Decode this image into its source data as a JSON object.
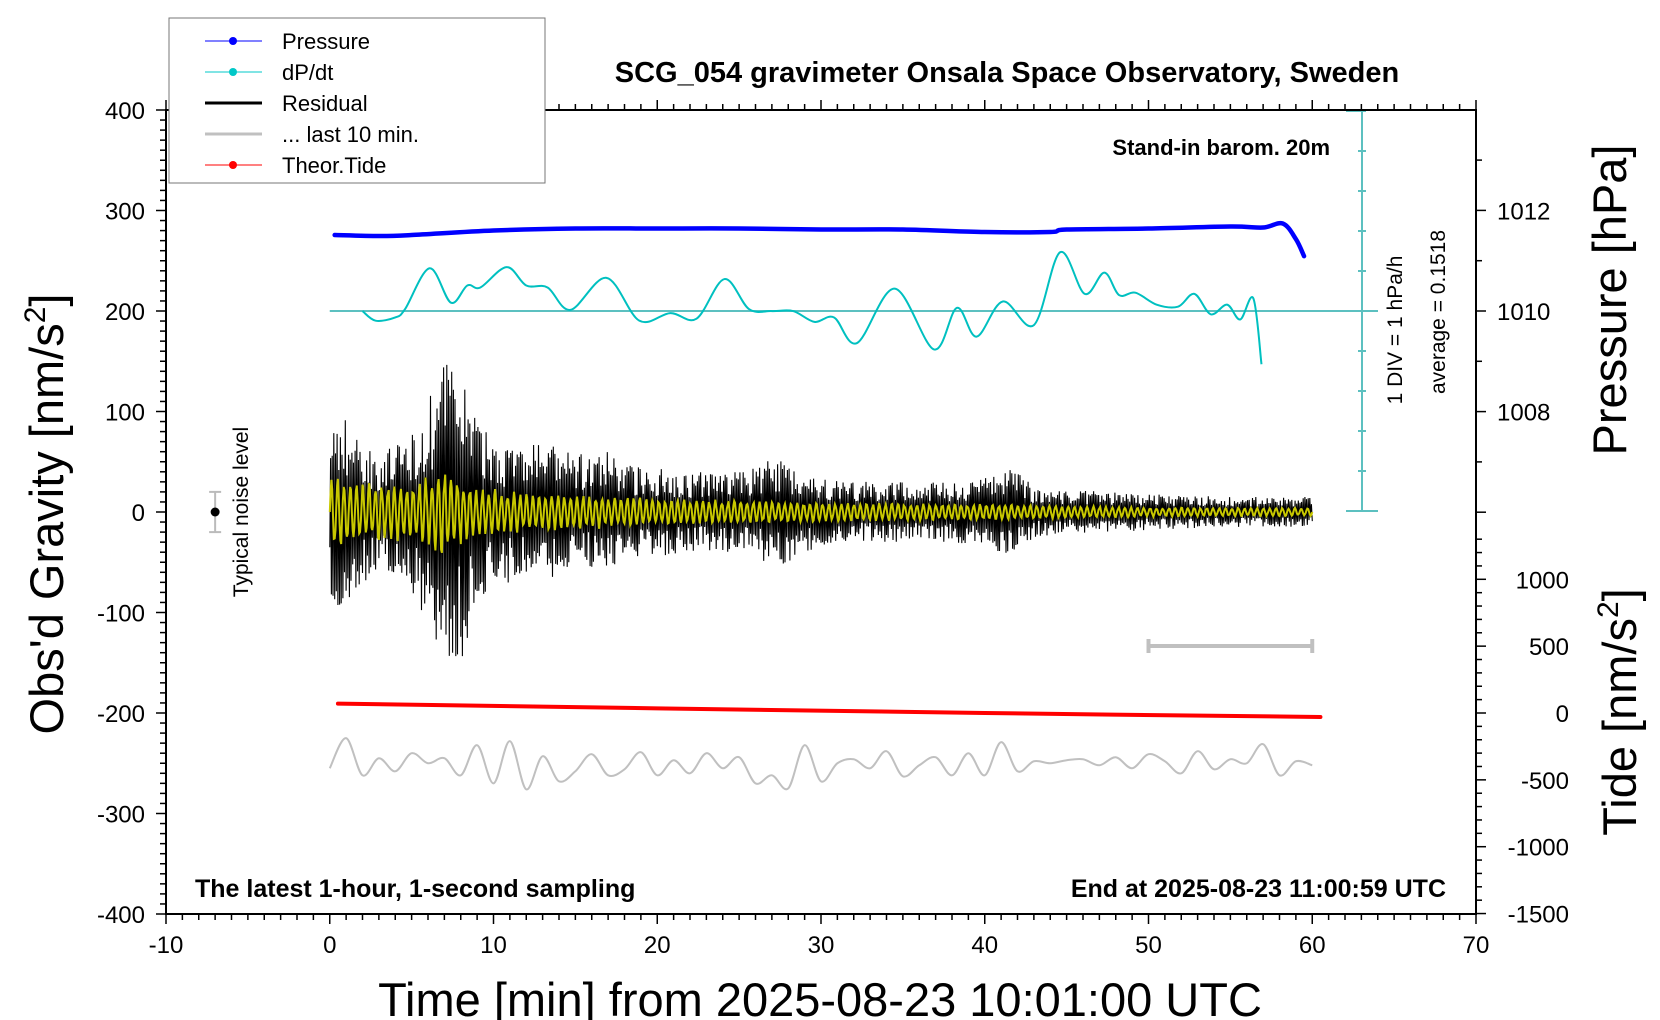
{
  "chart_data": {
    "type": "line",
    "title": "SCG_054 gravimeter Onsala Space Observatory, Sweden",
    "subtitle_top_right": "Stand-in barom. 20m",
    "note_bottom_left": "The latest 1-hour, 1-second sampling",
    "note_bottom_right": "End at 2025-08-23 11:00:59 UTC",
    "xlabel": "Time [min] from 2025-08-23 10:01:00 UTC",
    "xlim": [
      -10,
      70
    ],
    "xticks": [
      -10,
      0,
      10,
      20,
      30,
      40,
      50,
      60,
      70
    ],
    "ylabel_left": {
      "text": "Obs'd Gravity [nm/s",
      "sup": "2",
      "tail": "]"
    },
    "ylim_left": [
      -400,
      400
    ],
    "yticks_left": [
      400,
      300,
      200,
      100,
      0,
      -100,
      -200,
      -300,
      -400
    ],
    "ylabel_pressure": "Pressure [hPa]",
    "yticks_pressure": [
      1012,
      1010,
      1008
    ],
    "ylabel_tide": {
      "text": "Tide [nm/s",
      "sup": "2",
      "tail": "]"
    },
    "yticks_tide": [
      1000,
      500,
      0,
      -500,
      -1000,
      -1500
    ],
    "dpdt_scale_label": "1 DIV = 1 hPa/h",
    "dpdt_average_label": "average = 0.1518",
    "dpdt_average": 0.1518,
    "noise_label": "Typical noise level",
    "noise_level": 20,
    "last10_window": [
      50,
      60
    ],
    "grid": false,
    "legend_placement": "top-left",
    "legend": [
      {
        "name": "Pressure",
        "color": "#0000ff",
        "marker": true
      },
      {
        "name": "dP/dt",
        "color": "#00c8c8",
        "marker": true
      },
      {
        "name": "Residual",
        "color": "#000000",
        "marker": false
      },
      {
        "name": "... last 10 min.",
        "color": "#c0c0c0",
        "marker": false
      },
      {
        "name": "Theor.Tide",
        "color": "#ff0000",
        "marker": true
      }
    ],
    "colors": {
      "pressure": "#0000ff",
      "dpdt": "#00c0c0",
      "dpdt_axis": "#5cc0c0",
      "residual": "#000000",
      "filtered": "#c8c800",
      "last10": "#c0c0c0",
      "tide": "#ff0000"
    },
    "series": {
      "pressure_hPa": {
        "x": [
          0.3,
          3,
          5,
          10,
          15,
          20,
          25,
          30,
          35,
          40,
          44,
          45,
          50,
          55,
          57,
          58.2,
          59,
          59.5
        ],
        "y": [
          1011.51,
          1011.49,
          1011.51,
          1011.6,
          1011.64,
          1011.64,
          1011.64,
          1011.62,
          1011.62,
          1011.57,
          1011.57,
          1011.62,
          1011.64,
          1011.68,
          1011.66,
          1011.74,
          1011.43,
          1011.09
        ]
      },
      "dpdt_hPa_per_h": {
        "x": [
          2.0,
          2.8,
          4.0,
          4.6,
          6.1,
          7.4,
          8.4,
          9.2,
          10.8,
          12.0,
          13.3,
          14.7,
          16.9,
          18.9,
          20.8,
          22.4,
          24.1,
          25.6,
          27.0,
          28.3,
          29.6,
          30.8,
          32.2,
          34.5,
          36.9,
          38.3,
          39.5,
          41.1,
          43.0,
          44.6,
          46.1,
          47.3,
          48.2,
          49.2,
          50.5,
          51.8,
          52.8,
          53.8,
          54.8,
          55.6,
          56.4,
          56.9
        ],
        "y": [
          0.15,
          -0.09,
          -0.01,
          0.2,
          1.22,
          0.36,
          0.79,
          0.74,
          1.25,
          0.79,
          0.74,
          0.18,
          0.98,
          -0.09,
          0.1,
          -0.04,
          0.95,
          0.2,
          0.15,
          0.15,
          -0.12,
          -0.01,
          -0.65,
          0.71,
          -0.81,
          0.23,
          -0.49,
          0.39,
          -0.2,
          1.62,
          0.58,
          1.11,
          0.55,
          0.61,
          0.31,
          0.26,
          0.58,
          0.07,
          0.31,
          -0.06,
          0.47,
          -1.18
        ]
      },
      "residual_envelope_nm_s2": {
        "x": [
          0,
          1,
          2,
          3,
          4,
          5,
          6,
          7,
          8,
          9,
          10,
          11,
          12,
          13,
          14,
          15,
          16,
          17,
          18,
          19,
          20,
          22,
          24,
          26,
          27,
          28,
          29,
          30,
          32,
          34,
          36,
          38,
          40,
          41,
          42,
          43,
          45,
          48,
          50,
          55,
          60
        ],
        "y": [
          100,
          95,
          70,
          60,
          65,
          80,
          110,
          150,
          155,
          90,
          75,
          70,
          65,
          75,
          60,
          60,
          55,
          60,
          50,
          45,
          45,
          40,
          40,
          45,
          55,
          50,
          40,
          35,
          30,
          30,
          30,
          30,
          35,
          45,
          40,
          25,
          22,
          20,
          18,
          15,
          15
        ]
      },
      "filtered_envelope_nm_s2": {
        "x": [
          0,
          2,
          5,
          7,
          9,
          12,
          15,
          20,
          30,
          40,
          50,
          60
        ],
        "y": [
          40,
          30,
          30,
          45,
          25,
          20,
          18,
          14,
          10,
          8,
          5,
          4
        ]
      },
      "last10_nm_s2": {
        "x": [
          0,
          1,
          2,
          3,
          4,
          5,
          6,
          7,
          8,
          9,
          10,
          11,
          12,
          13,
          14,
          15,
          16,
          17,
          18,
          19,
          20,
          21,
          22,
          23,
          24,
          25,
          26,
          27,
          28,
          29,
          30,
          31,
          32,
          33,
          34,
          35,
          36,
          37,
          38,
          39,
          40,
          41,
          42,
          43,
          44,
          45,
          46,
          47,
          48,
          49,
          50,
          51,
          52,
          53,
          54,
          55,
          56,
          57,
          58,
          59,
          60
        ],
        "y": [
          -255,
          -225,
          -262,
          -245,
          -258,
          -240,
          -250,
          -245,
          -262,
          -232,
          -270,
          -228,
          -276,
          -243,
          -268,
          -258,
          -241,
          -262,
          -256,
          -239,
          -262,
          -247,
          -260,
          -240,
          -255,
          -244,
          -270,
          -262,
          -275,
          -232,
          -268,
          -250,
          -246,
          -255,
          -238,
          -263,
          -252,
          -244,
          -262,
          -240,
          -262,
          -229,
          -258,
          -248,
          -250,
          -247,
          -246,
          -252,
          -244,
          -255,
          -241,
          -248,
          -260,
          -238,
          -256,
          -246,
          -250,
          -231,
          -262,
          -248,
          -252
        ]
      },
      "tide_nm_s2": {
        "x": [
          0.5,
          20,
          40,
          60.5
        ],
        "y": [
          70,
          35,
          0,
          -30
        ]
      }
    }
  }
}
